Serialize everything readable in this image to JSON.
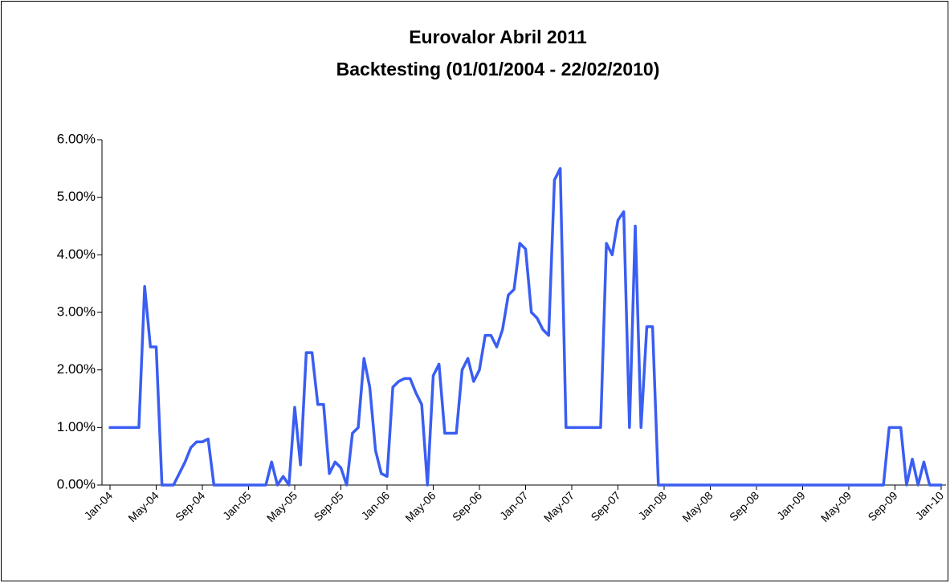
{
  "chart_data": {
    "type": "line",
    "title": "Eurovalor Abril 2011",
    "subtitle": "Backtesting (01/01/2004 - 22/02/2010)",
    "categories": [
      "Jan-04",
      null,
      null,
      null,
      null,
      null,
      null,
      null,
      "May-04",
      null,
      null,
      null,
      null,
      null,
      null,
      null,
      "Sep-04",
      null,
      null,
      null,
      null,
      null,
      null,
      null,
      "Jan-05",
      null,
      null,
      null,
      null,
      null,
      null,
      null,
      "May-05",
      null,
      null,
      null,
      null,
      null,
      null,
      null,
      "Sep-05",
      null,
      null,
      null,
      null,
      null,
      null,
      null,
      "Jan-06",
      null,
      null,
      null,
      null,
      null,
      null,
      null,
      "May-06",
      null,
      null,
      null,
      null,
      null,
      null,
      null,
      "Sep-06",
      null,
      null,
      null,
      null,
      null,
      null,
      null,
      "Jan-07",
      null,
      null,
      null,
      null,
      null,
      null,
      null,
      "May-07",
      null,
      null,
      null,
      null,
      null,
      null,
      null,
      "Sep-07",
      null,
      null,
      null,
      null,
      null,
      null,
      null,
      "Jan-08",
      null,
      null,
      null,
      null,
      null,
      null,
      null,
      "May-08",
      null,
      null,
      null,
      null,
      null,
      null,
      null,
      "Sep-08",
      null,
      null,
      null,
      null,
      null,
      null,
      null,
      "Jan-09",
      null,
      null,
      null,
      null,
      null,
      null,
      null,
      "May-09",
      null,
      null,
      null,
      null,
      null,
      null,
      null,
      "Sep-09",
      null,
      null,
      null,
      null,
      null,
      null,
      null,
      "Jan-10"
    ],
    "values": [
      1.0,
      1.0,
      1.0,
      1.0,
      1.0,
      1.0,
      3.45,
      2.4,
      2.4,
      0,
      0,
      0,
      0.2,
      0.4,
      0.65,
      0.75,
      0.75,
      0.8,
      0,
      0,
      0,
      0,
      0,
      0,
      0,
      0,
      0,
      0,
      0.4,
      0,
      0.15,
      0,
      1.35,
      0.35,
      2.3,
      2.3,
      1.4,
      1.4,
      0.2,
      0.4,
      0.3,
      0,
      0.9,
      1.0,
      2.2,
      1.7,
      0.6,
      0.2,
      0.15,
      1.7,
      1.8,
      1.85,
      1.85,
      1.6,
      1.4,
      0,
      1.9,
      2.1,
      0.9,
      0.9,
      0.9,
      2.0,
      2.2,
      1.8,
      2.0,
      2.6,
      2.6,
      2.4,
      2.7,
      3.3,
      3.4,
      4.2,
      4.1,
      3.0,
      2.9,
      2.7,
      2.6,
      5.3,
      5.5,
      1.0,
      1.0,
      1.0,
      1.0,
      1.0,
      1.0,
      1.0,
      4.2,
      4.0,
      4.6,
      4.75,
      1.0,
      4.5,
      1.0,
      2.75,
      2.75,
      0,
      0,
      0,
      0,
      0,
      0,
      0,
      0,
      0,
      0,
      0,
      0,
      0,
      0,
      0,
      0,
      0,
      0,
      0,
      0,
      0,
      0,
      0,
      0,
      0,
      0,
      0,
      0,
      0,
      0,
      0,
      0,
      0,
      0,
      0,
      0,
      0,
      0,
      0,
      0,
      1.0,
      1.0,
      1.0,
      0,
      0.45,
      0,
      0.4,
      0,
      0,
      0
    ],
    "color": "#3a5ef2",
    "ylim": [
      0,
      6
    ],
    "yticks": [
      {
        "value": 0,
        "label": "0.00%"
      },
      {
        "value": 1,
        "label": "1.00%"
      },
      {
        "value": 2,
        "label": "2.00%"
      },
      {
        "value": 3,
        "label": "3.00%"
      },
      {
        "value": 4,
        "label": "4.00%"
      },
      {
        "value": 5,
        "label": "5.00%"
      },
      {
        "value": 6,
        "label": "6.00%"
      }
    ],
    "grid": false
  }
}
